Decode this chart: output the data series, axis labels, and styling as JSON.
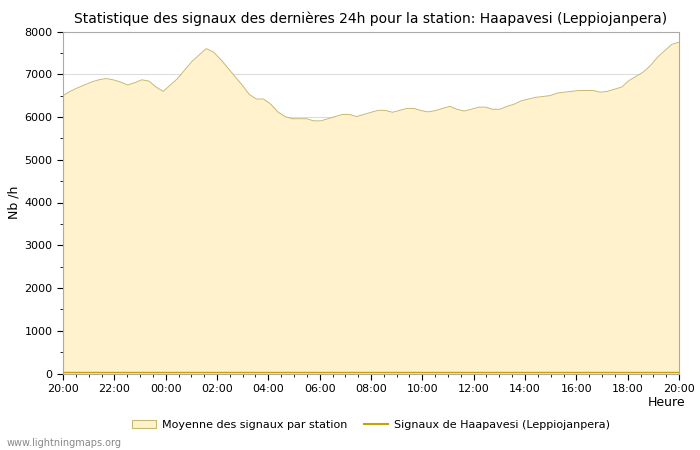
{
  "title": "Statistique des signaux des dernières 24h pour la station: Haapavesi (Leppiojanpera)",
  "xlabel": "Heure",
  "ylabel": "Nb /h",
  "ylim": [
    0,
    8000
  ],
  "yticks": [
    0,
    1000,
    2000,
    3000,
    4000,
    5000,
    6000,
    7000,
    8000
  ],
  "x_labels": [
    "20:00",
    "22:00",
    "00:00",
    "02:00",
    "04:00",
    "06:00",
    "08:00",
    "10:00",
    "12:00",
    "14:00",
    "16:00",
    "18:00",
    "20:00"
  ],
  "fill_color": "#FFF2CC",
  "fill_edge_color": "#C8B870",
  "line_color": "#C8A000",
  "background_color": "#FFFFFF",
  "grid_color": "#CCCCCC",
  "watermark": "www.lightningmaps.org",
  "legend_fill_label": "Moyenne des signaux par station",
  "legend_line_label": "Signaux de Haapavesi (Leppiojanpera)",
  "title_fontsize": 10,
  "tick_fontsize": 8,
  "label_fontsize": 9,
  "y_fill": [
    6500,
    6600,
    6680,
    6750,
    6820,
    6870,
    6900,
    6870,
    6820,
    6750,
    6800,
    6870,
    6840,
    6700,
    6600,
    6750,
    6900,
    7100,
    7300,
    7450,
    7600,
    7520,
    7350,
    7150,
    6950,
    6750,
    6530,
    6420,
    6420,
    6300,
    6120,
    6010,
    5960,
    5960,
    5960,
    5910,
    5910,
    5960,
    6010,
    6060,
    6060,
    6010,
    6060,
    6110,
    6155,
    6155,
    6110,
    6155,
    6200,
    6200,
    6150,
    6120,
    6150,
    6200,
    6250,
    6180,
    6140,
    6180,
    6230,
    6230,
    6180,
    6180,
    6250,
    6300,
    6380,
    6420,
    6460,
    6480,
    6500,
    6560,
    6580,
    6600,
    6620,
    6620,
    6620,
    6580,
    6600,
    6650,
    6700,
    6850,
    6950,
    7050,
    7200,
    7400,
    7550,
    7700,
    7750
  ],
  "y_signal": [
    30,
    30,
    30,
    30,
    30,
    30,
    30,
    30,
    30,
    30,
    30,
    30,
    30,
    30,
    30,
    30,
    30,
    30,
    30,
    30,
    30,
    30,
    30,
    30,
    30,
    30,
    30,
    30,
    30,
    30,
    30,
    30,
    30,
    30,
    30,
    30,
    30,
    30,
    30,
    30,
    30,
    30,
    30,
    30,
    30,
    30,
    30,
    30,
    30,
    30,
    30,
    30,
    30,
    30,
    30,
    30,
    30,
    30,
    30,
    30,
    30,
    30,
    30,
    30,
    30,
    30,
    30,
    30,
    30,
    30,
    30,
    30,
    30,
    30,
    30,
    30,
    30,
    30,
    30,
    30,
    30,
    30,
    30,
    30,
    30,
    30,
    30
  ]
}
